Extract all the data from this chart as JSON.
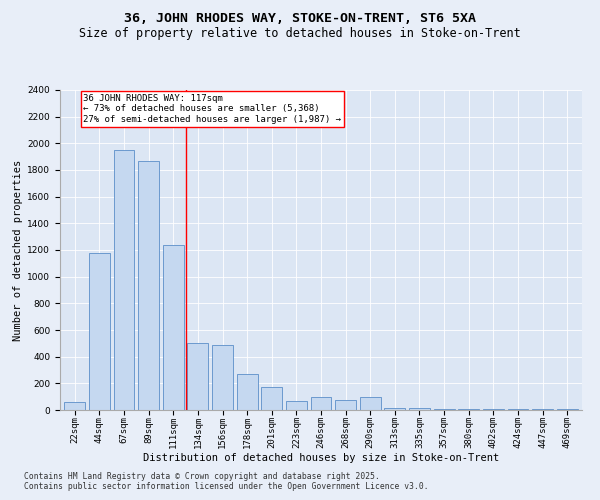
{
  "title1": "36, JOHN RHODES WAY, STOKE-ON-TRENT, ST6 5XA",
  "title2": "Size of property relative to detached houses in Stoke-on-Trent",
  "xlabel": "Distribution of detached houses by size in Stoke-on-Trent",
  "ylabel": "Number of detached properties",
  "categories": [
    "22sqm",
    "44sqm",
    "67sqm",
    "89sqm",
    "111sqm",
    "134sqm",
    "156sqm",
    "178sqm",
    "201sqm",
    "223sqm",
    "246sqm",
    "268sqm",
    "290sqm",
    "313sqm",
    "335sqm",
    "357sqm",
    "380sqm",
    "402sqm",
    "424sqm",
    "447sqm",
    "469sqm"
  ],
  "values": [
    60,
    1180,
    1950,
    1870,
    1240,
    500,
    490,
    270,
    175,
    70,
    100,
    75,
    95,
    15,
    15,
    10,
    10,
    5,
    5,
    5,
    5
  ],
  "bar_color": "#c5d8f0",
  "bar_edge_color": "#5b8fc9",
  "annotation_text_line1": "36 JOHN RHODES WAY: 117sqm",
  "annotation_text_line2": "← 73% of detached houses are smaller (5,368)",
  "annotation_text_line3": "27% of semi-detached houses are larger (1,987) →",
  "vline_color": "red",
  "vline_x": 4.5,
  "annotation_box_color": "white",
  "annotation_box_edge": "red",
  "footnote1": "Contains HM Land Registry data © Crown copyright and database right 2025.",
  "footnote2": "Contains public sector information licensed under the Open Government Licence v3.0.",
  "bg_color": "#e8eef8",
  "plot_bg_color": "#dce6f4",
  "ylim": [
    0,
    2400
  ],
  "yticks": [
    0,
    200,
    400,
    600,
    800,
    1000,
    1200,
    1400,
    1600,
    1800,
    2000,
    2200,
    2400
  ],
  "title_fontsize": 9.5,
  "subtitle_fontsize": 8.5,
  "axis_label_fontsize": 7.5,
  "tick_fontsize": 6.5,
  "annotation_fontsize": 6.5,
  "footnote_fontsize": 5.8
}
